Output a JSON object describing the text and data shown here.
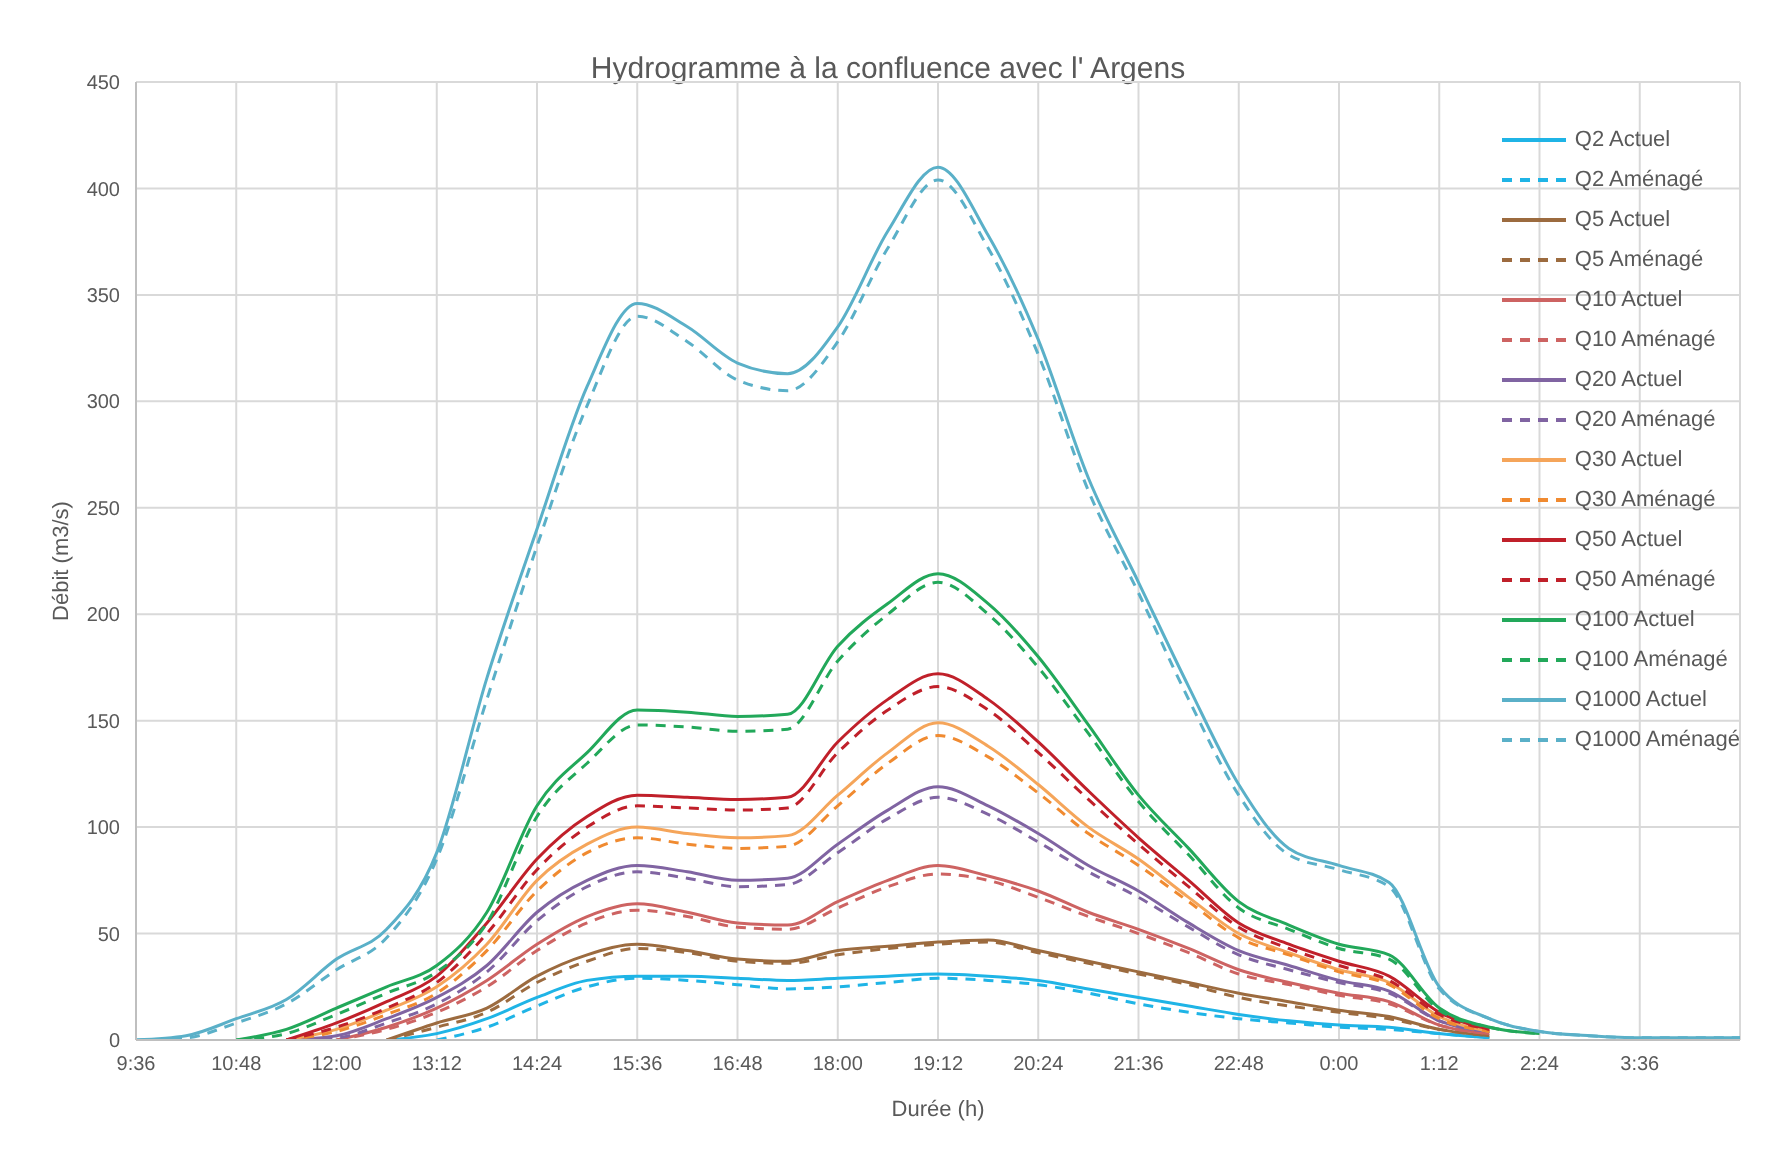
{
  "chart_data": {
    "type": "line",
    "title": "Hydrogramme à la confluence avec l'  Argens",
    "xlabel": "Durée (h)",
    "ylabel": "Débit (m3/s)",
    "grid": true,
    "legend": "top right",
    "categories": [
      "9:36",
      null,
      "10:48",
      null,
      "12:00",
      null,
      "13:12",
      null,
      "14:24",
      null,
      "15:36",
      null,
      "16:48",
      null,
      "18:00",
      null,
      "19:12",
      null,
      "20:24",
      null,
      "21:36",
      null,
      "22:48",
      null,
      "0:00",
      null,
      "1:12",
      null,
      "2:24",
      null,
      "3:36",
      null,
      null
    ],
    "ylim": [
      0,
      450
    ],
    "yticks": [
      0,
      50,
      100,
      150,
      200,
      250,
      300,
      350,
      400,
      450
    ],
    "series": [
      {
        "name": "Q2 Actuel",
        "color": "#1fb4e6",
        "line_style": "solid",
        "values": [
          null,
          null,
          null,
          null,
          null,
          0,
          3,
          10,
          20,
          28,
          30,
          30,
          29,
          28,
          29,
          30,
          31,
          30,
          28,
          24,
          20,
          16,
          12,
          9,
          7,
          6,
          3,
          1,
          null,
          null,
          null,
          null,
          null
        ]
      },
      {
        "name": "Q2 Aménagé",
        "color": "#1fb4e6",
        "line_style": "dashed",
        "values": [
          null,
          null,
          null,
          null,
          null,
          null,
          0,
          6,
          16,
          25,
          29,
          28,
          26,
          24,
          25,
          27,
          29,
          28,
          26,
          22,
          17,
          13,
          10,
          8,
          6,
          5,
          3,
          1,
          null,
          null,
          null,
          null,
          null
        ]
      },
      {
        "name": "Q5 Actuel",
        "color": "#9c6b3f",
        "line_style": "solid",
        "values": [
          null,
          null,
          null,
          null,
          null,
          0,
          8,
          15,
          30,
          40,
          45,
          42,
          38,
          37,
          42,
          44,
          46,
          47,
          42,
          37,
          32,
          27,
          22,
          18,
          14,
          11,
          5,
          2,
          null,
          null,
          null,
          null,
          null
        ]
      },
      {
        "name": "Q5 Aménagé",
        "color": "#9c6b3f",
        "line_style": "dashed",
        "values": [
          null,
          null,
          null,
          null,
          null,
          0,
          6,
          13,
          27,
          37,
          43,
          41,
          37,
          36,
          40,
          43,
          45,
          46,
          41,
          36,
          31,
          26,
          20,
          16,
          13,
          10,
          5,
          2,
          null,
          null,
          null,
          null,
          null
        ]
      },
      {
        "name": "Q10 Actuel",
        "color": "#cd6362",
        "line_style": "solid",
        "values": [
          null,
          null,
          null,
          null,
          0,
          6,
          15,
          28,
          45,
          58,
          64,
          60,
          55,
          54,
          65,
          75,
          82,
          77,
          70,
          60,
          52,
          43,
          33,
          27,
          22,
          18,
          7,
          3,
          null,
          null,
          null,
          null,
          null
        ]
      },
      {
        "name": "Q10 Aménagé",
        "color": "#cd6362",
        "line_style": "dashed",
        "values": [
          null,
          null,
          null,
          null,
          0,
          5,
          13,
          25,
          42,
          55,
          61,
          58,
          53,
          52,
          62,
          72,
          78,
          75,
          67,
          58,
          50,
          41,
          31,
          26,
          21,
          17,
          7,
          3,
          null,
          null,
          null,
          null,
          null
        ]
      },
      {
        "name": "Q20 Actuel",
        "color": "#8064a2",
        "line_style": "solid",
        "values": [
          null,
          null,
          null,
          0,
          2,
          10,
          20,
          35,
          60,
          75,
          82,
          79,
          75,
          76,
          92,
          108,
          119,
          110,
          97,
          82,
          70,
          55,
          42,
          35,
          28,
          23,
          9,
          4,
          null,
          null,
          null,
          null,
          null
        ]
      },
      {
        "name": "Q20 Aménagé",
        "color": "#8064a2",
        "line_style": "dashed",
        "values": [
          null,
          null,
          null,
          0,
          1,
          8,
          17,
          32,
          56,
          72,
          79,
          76,
          72,
          73,
          88,
          104,
          114,
          106,
          93,
          79,
          67,
          53,
          40,
          33,
          27,
          22,
          9,
          4,
          null,
          null,
          null,
          null,
          null
        ]
      },
      {
        "name": "Q30 Actuel",
        "color": "#f5a55a",
        "line_style": "solid",
        "values": [
          null,
          null,
          null,
          0,
          5,
          14,
          25,
          45,
          75,
          92,
          100,
          97,
          95,
          96,
          115,
          135,
          149,
          138,
          120,
          100,
          85,
          67,
          50,
          41,
          33,
          27,
          11,
          4,
          null,
          null,
          null,
          null,
          null
        ]
      },
      {
        "name": "Q30 Aménagé",
        "color": "#f08a30",
        "line_style": "dashed",
        "values": [
          null,
          null,
          null,
          0,
          4,
          12,
          22,
          42,
          70,
          88,
          95,
          92,
          90,
          91,
          110,
          130,
          143,
          133,
          116,
          97,
          82,
          65,
          48,
          40,
          32,
          26,
          10,
          4,
          null,
          null,
          null,
          null,
          null
        ]
      },
      {
        "name": "Q50 Actuel",
        "color": "#c0202a",
        "line_style": "solid",
        "values": [
          null,
          null,
          null,
          0,
          8,
          18,
          30,
          55,
          85,
          105,
          115,
          114,
          113,
          114,
          140,
          160,
          172,
          160,
          140,
          117,
          95,
          75,
          55,
          45,
          37,
          30,
          13,
          5,
          null,
          null,
          null,
          null,
          null
        ]
      },
      {
        "name": "Q50 Aménagé",
        "color": "#c0202a",
        "line_style": "dashed",
        "values": [
          null,
          null,
          null,
          0,
          6,
          15,
          27,
          50,
          80,
          100,
          110,
          109,
          108,
          109,
          135,
          155,
          166,
          155,
          135,
          113,
          92,
          72,
          53,
          43,
          35,
          28,
          12,
          5,
          null,
          null,
          null,
          null,
          null
        ]
      },
      {
        "name": "Q100 Actuel",
        "color": "#22a85a",
        "line_style": "solid",
        "values": [
          null,
          null,
          0,
          5,
          15,
          25,
          35,
          60,
          110,
          135,
          155,
          154,
          152,
          153,
          185,
          205,
          219,
          205,
          180,
          148,
          115,
          90,
          65,
          54,
          45,
          40,
          15,
          6,
          3,
          null,
          null,
          null,
          null
        ]
      },
      {
        "name": "Q100 Aménagé",
        "color": "#22a85a",
        "line_style": "dashed",
        "values": [
          null,
          null,
          0,
          3,
          12,
          22,
          32,
          55,
          105,
          130,
          148,
          147,
          145,
          146,
          178,
          200,
          215,
          200,
          175,
          144,
          112,
          87,
          62,
          52,
          43,
          38,
          14,
          6,
          3,
          null,
          null,
          null,
          null
        ]
      },
      {
        "name": "Q1000 Actuel",
        "color": "#5ab0c8",
        "line_style": "solid",
        "values": [
          0,
          2,
          10,
          19,
          38,
          52,
          88,
          170,
          240,
          307,
          346,
          335,
          318,
          313,
          335,
          380,
          410,
          378,
          329,
          264,
          215,
          166,
          120,
          90,
          82,
          74,
          25,
          10,
          4,
          2,
          1,
          1,
          1
        ]
      },
      {
        "name": "Q1000 Aménagé",
        "color": "#5ab0c8",
        "line_style": "dashed",
        "values": [
          0,
          1,
          8,
          17,
          33,
          48,
          85,
          160,
          232,
          298,
          340,
          328,
          310,
          305,
          328,
          372,
          404,
          372,
          322,
          258,
          210,
          160,
          115,
          87,
          80,
          72,
          24,
          10,
          4,
          2,
          1,
          1,
          1
        ]
      }
    ]
  }
}
